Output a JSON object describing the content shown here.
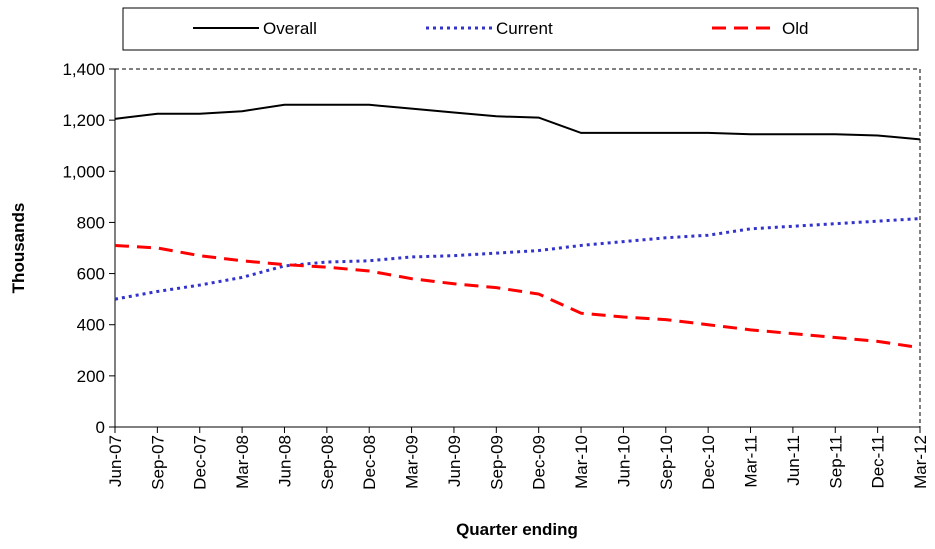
{
  "chart_data": {
    "type": "line",
    "x_label": "Quarter ending",
    "y_label": "Thousands",
    "categories": [
      "Jun-07",
      "Sep-07",
      "Dec-07",
      "Mar-08",
      "Jun-08",
      "Sep-08",
      "Dec-08",
      "Mar-09",
      "Jun-09",
      "Sep-09",
      "Dec-09",
      "Mar-10",
      "Jun-10",
      "Sep-10",
      "Dec-10",
      "Mar-11",
      "Jun-11",
      "Sep-11",
      "Dec-11",
      "Mar-12"
    ],
    "series": [
      {
        "name": "Overall",
        "color": "#000000",
        "dash": "solid",
        "values": [
          1205,
          1225,
          1225,
          1235,
          1260,
          1260,
          1260,
          1245,
          1230,
          1215,
          1210,
          1150,
          1150,
          1150,
          1150,
          1145,
          1145,
          1145,
          1140,
          1125
        ]
      },
      {
        "name": "Current",
        "color": "#3333cc",
        "dash": "dotted",
        "values": [
          500,
          530,
          555,
          585,
          630,
          645,
          650,
          665,
          670,
          680,
          690,
          710,
          725,
          740,
          750,
          775,
          785,
          795,
          805,
          815
        ]
      },
      {
        "name": "Old",
        "color": "#ff0000",
        "dash": "dashed",
        "values": [
          710,
          700,
          670,
          650,
          635,
          625,
          610,
          580,
          560,
          545,
          520,
          445,
          430,
          420,
          400,
          380,
          365,
          350,
          335,
          310
        ]
      }
    ],
    "ylim": [
      0,
      1400
    ],
    "yticks": [
      0,
      200,
      400,
      600,
      800,
      {
        "value": 1000,
        "label": "1,000"
      },
      {
        "value": 1200,
        "label": "1,200"
      },
      {
        "value": 1400,
        "label": "1,400"
      }
    ],
    "legend": "top"
  }
}
